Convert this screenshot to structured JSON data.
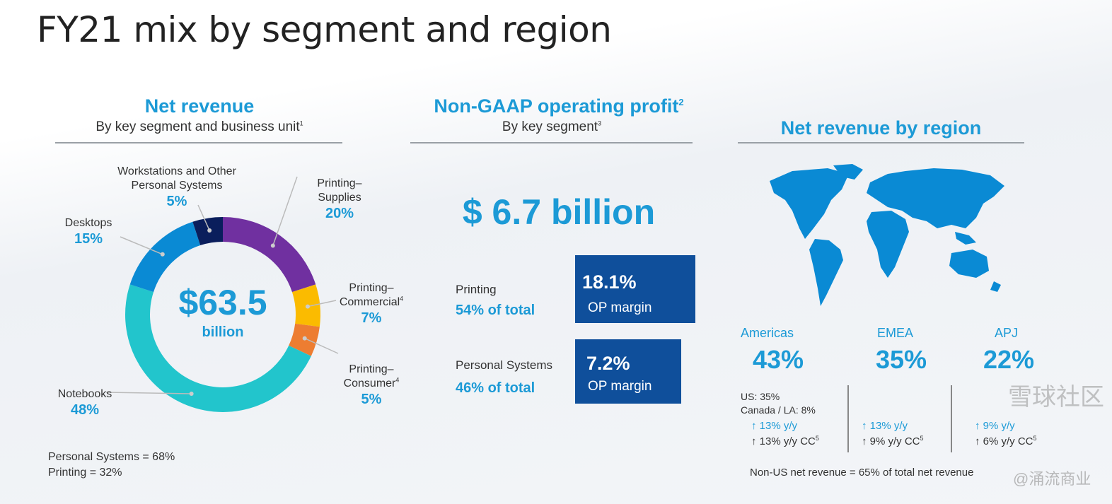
{
  "title": "FY21 mix by segment and region",
  "net_revenue": {
    "heading": "Net revenue",
    "subheading": "By key segment and business unit",
    "subheading_note": "1",
    "center_value": "$63.5",
    "center_unit": "billion",
    "footer": [
      "Personal Systems = 68%",
      "Printing = 32%"
    ]
  },
  "chart_data": {
    "type": "pie",
    "style": "donut",
    "title": "Net revenue",
    "categories": [
      "Printing– Supplies",
      "Printing– Commercial",
      "Printing– Consumer",
      "Notebooks",
      "Desktops",
      "Workstations and Other Personal Systems"
    ],
    "label_lines": [
      [
        "Printing–",
        "Supplies"
      ],
      [
        "Printing–",
        "Commercial"
      ],
      [
        "Printing–",
        "Consumer"
      ],
      [
        "Notebooks"
      ],
      [
        "Desktops"
      ],
      [
        "Workstations and Other",
        "Personal Systems"
      ]
    ],
    "label_notes": [
      "",
      "4",
      "4",
      "",
      "",
      ""
    ],
    "values": [
      20,
      7,
      5,
      48,
      15,
      5
    ],
    "value_labels": [
      "20%",
      "7%",
      "5%",
      "48%",
      "15%",
      "5%"
    ],
    "colors": [
      "#7030a0",
      "#fbbb00",
      "#ed7d31",
      "#22c5cc",
      "#0a8ad4",
      "#0a1e5c"
    ],
    "unit": "%"
  },
  "op_profit": {
    "heading": "Non-GAAP operating profit",
    "heading_note": "2",
    "subheading": "By key segment",
    "subheading_note": "3",
    "total": "$ 6.7 billion",
    "segments": [
      {
        "name": "Printing",
        "share": "54% of total",
        "margin": "18.1%",
        "margin_label": "OP margin"
      },
      {
        "name": "Personal Systems",
        "share": "46% of total",
        "margin": "7.2%",
        "margin_label": "OP margin"
      }
    ]
  },
  "region": {
    "heading": "Net revenue by region",
    "map_color": "#0a8ad4",
    "regions": [
      {
        "name": "Americas",
        "pct": "43%",
        "detail": [
          "US: 35%",
          "Canada / LA: 8%"
        ],
        "yy": "13% y/y",
        "cc": "13% y/y CC",
        "cc_note": "5"
      },
      {
        "name": "EMEA",
        "pct": "35%",
        "detail": [],
        "yy": "13% y/y",
        "cc": "9% y/y CC",
        "cc_note": "5"
      },
      {
        "name": "APJ",
        "pct": "22%",
        "detail": [],
        "yy": "9% y/y",
        "cc": "6% y/y CC",
        "cc_note": "5"
      }
    ],
    "footer": "Non-US net revenue = 65% of total net revenue"
  },
  "watermark": [
    "雪球社区",
    "@涌流商业"
  ]
}
